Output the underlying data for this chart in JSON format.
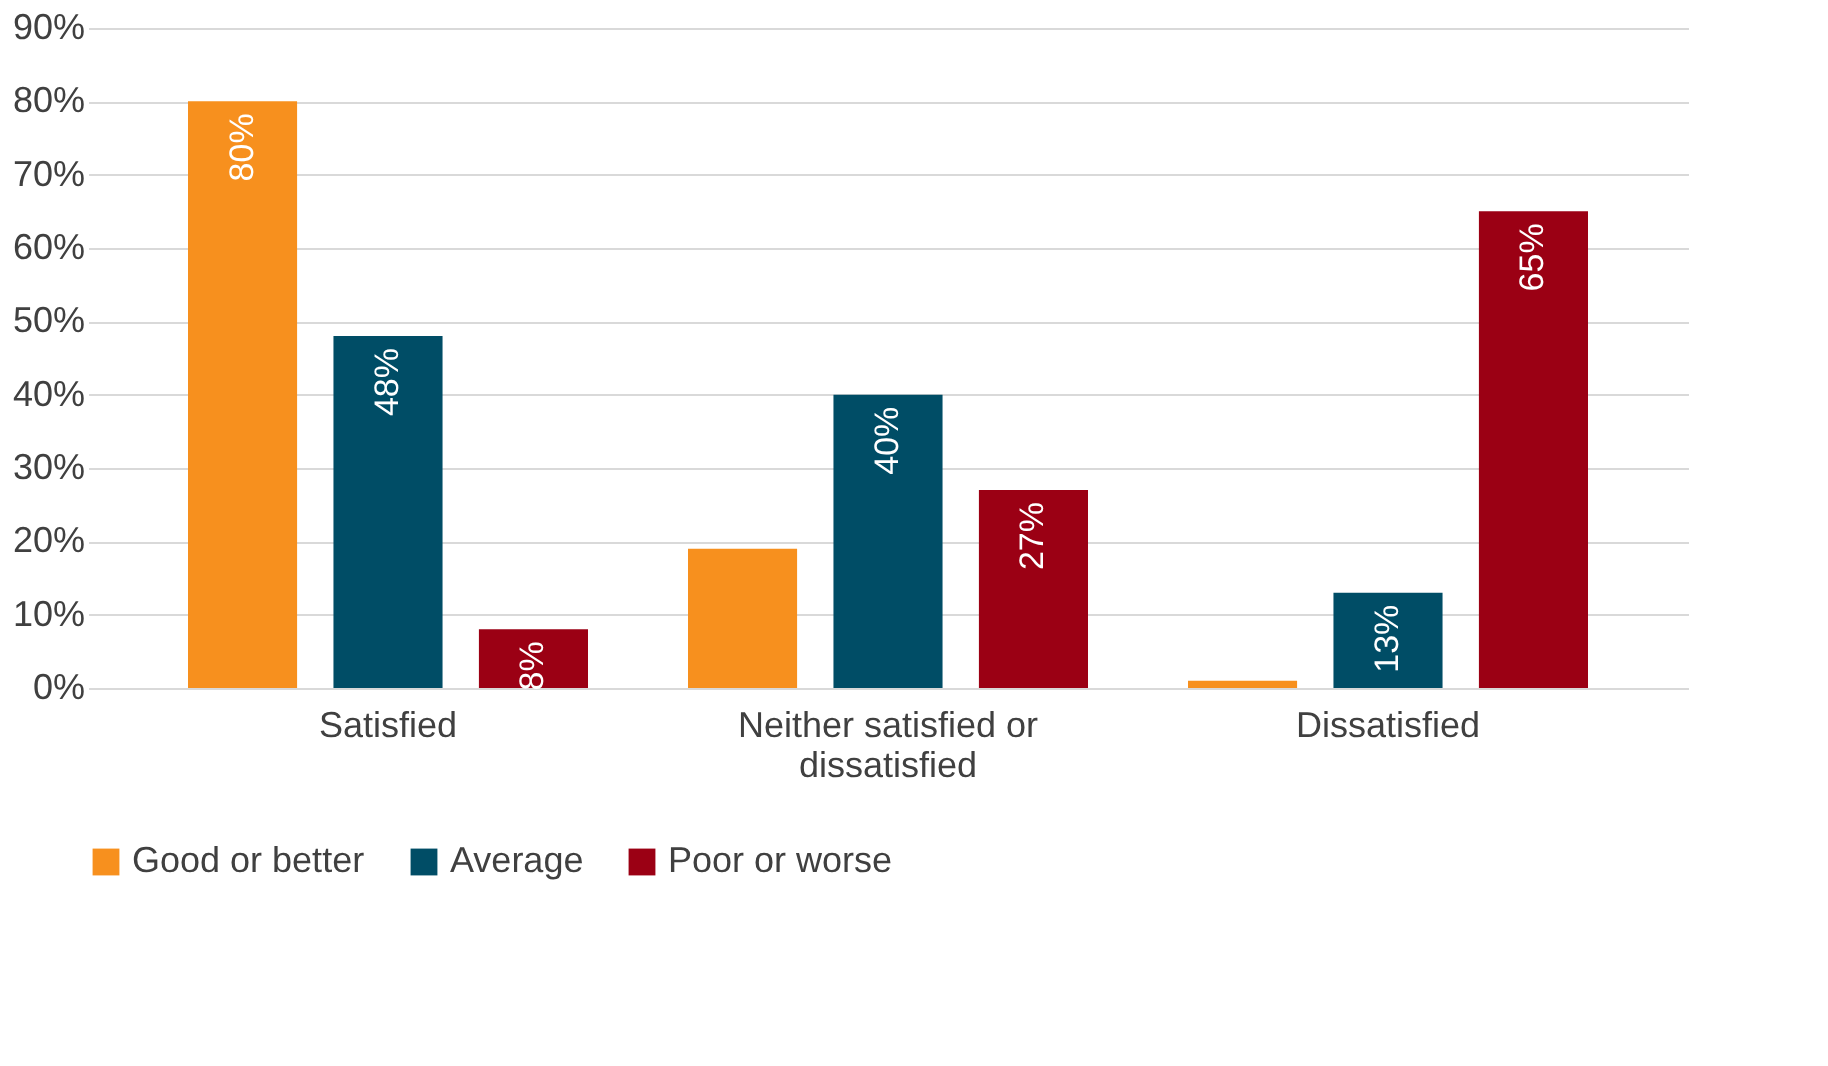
{
  "chart_data": {
    "type": "bar",
    "categories": [
      "Satisfied",
      "Neither satisfied or dissatisfied",
      "Dissatisfied"
    ],
    "series": [
      {
        "name": "Good or better",
        "color": "#f7901e",
        "values": [
          80,
          19,
          1
        ],
        "value_labels": [
          "80%",
          null,
          null
        ]
      },
      {
        "name": "Average",
        "color": "#004d66",
        "values": [
          48,
          40,
          13
        ],
        "value_labels": [
          "48%",
          "40%",
          "13%"
        ]
      },
      {
        "name": "Poor or worse",
        "color": "#9b0014",
        "values": [
          8,
          27,
          65
        ],
        "value_labels": [
          "8%",
          "27%",
          "65%"
        ]
      }
    ],
    "ylim": [
      0,
      90
    ],
    "yticks": [
      {
        "value": 0,
        "label": "0%"
      },
      {
        "value": 10,
        "label": "10%"
      },
      {
        "value": 20,
        "label": "20%"
      },
      {
        "value": 30,
        "label": "30%"
      },
      {
        "value": 40,
        "label": "40%"
      },
      {
        "value": 50,
        "label": "50%"
      },
      {
        "value": 60,
        "label": "60%"
      },
      {
        "value": 70,
        "label": "70%"
      },
      {
        "value": 80,
        "label": "80%"
      },
      {
        "value": 90,
        "label": "90%"
      }
    ],
    "grid": "y",
    "legend": "bottom"
  }
}
